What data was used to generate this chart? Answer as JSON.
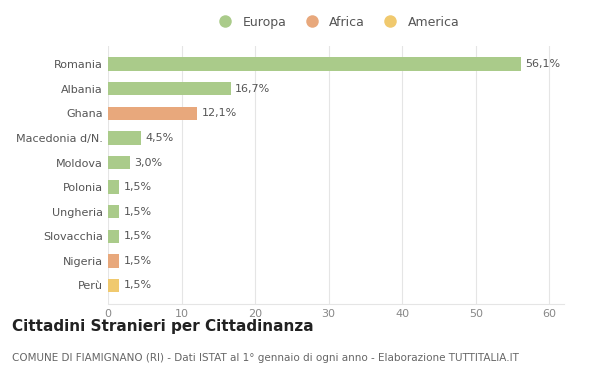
{
  "categories": [
    "Romania",
    "Albania",
    "Ghana",
    "Macedonia d/N.",
    "Moldova",
    "Polonia",
    "Ungheria",
    "Slovacchia",
    "Nigeria",
    "Perù"
  ],
  "values": [
    56.1,
    16.7,
    12.1,
    4.5,
    3.0,
    1.5,
    1.5,
    1.5,
    1.5,
    1.5
  ],
  "labels": [
    "56,1%",
    "16,7%",
    "12,1%",
    "4,5%",
    "3,0%",
    "1,5%",
    "1,5%",
    "1,5%",
    "1,5%",
    "1,5%"
  ],
  "continents": [
    "Europa",
    "Europa",
    "Africa",
    "Europa",
    "Europa",
    "Europa",
    "Europa",
    "Europa",
    "Africa",
    "America"
  ],
  "colors": {
    "Europa": "#aacb8a",
    "Africa": "#e8a87c",
    "America": "#f0c96e"
  },
  "legend_entries": [
    "Europa",
    "Africa",
    "America"
  ],
  "xlim": [
    0,
    62
  ],
  "xticks": [
    0,
    10,
    20,
    30,
    40,
    50,
    60
  ],
  "title": "Cittadini Stranieri per Cittadinanza",
  "subtitle": "COMUNE DI FIAMIGNANO (RI) - Dati ISTAT al 1° gennaio di ogni anno - Elaborazione TUTTITALIA.IT",
  "bg_color": "#ffffff",
  "grid_color": "#e5e5e5",
  "bar_height": 0.55,
  "title_fontsize": 11,
  "subtitle_fontsize": 7.5,
  "label_fontsize": 8,
  "tick_fontsize": 8,
  "legend_fontsize": 9
}
